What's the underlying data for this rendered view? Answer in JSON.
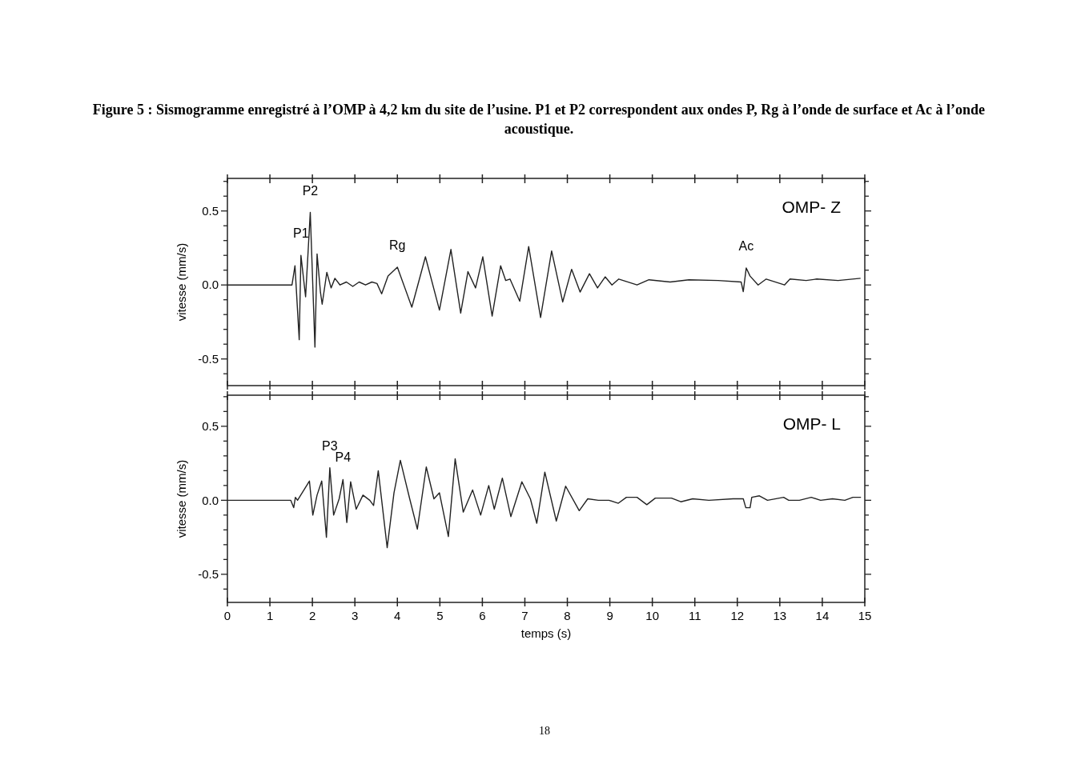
{
  "chart_data": [
    {
      "type": "line",
      "title": "Figure 5 : Sismogramme enregistré à l’OMP à 4,2 km du site de l’usine. P1 et P2 correspondent aux ondes P, Rg à l’onde de surface et Ac à l’onde acoustique.",
      "subtitle": "OMP- Z",
      "ylabel": "vitesse (mm/s)",
      "xlim": [
        0,
        15
      ],
      "xticks": [
        {
          "value": 0,
          "label": null
        },
        {
          "value": 1,
          "label": null
        },
        {
          "value": 2,
          "label": null
        },
        {
          "value": 3,
          "label": null
        },
        {
          "value": 4,
          "label": null
        },
        {
          "value": 5,
          "label": null
        },
        {
          "value": 6,
          "label": null
        },
        {
          "value": 7,
          "label": null
        },
        {
          "value": 8,
          "label": null
        },
        {
          "value": 9,
          "label": null
        },
        {
          "value": 10,
          "label": null
        },
        {
          "value": 11,
          "label": null
        },
        {
          "value": 12,
          "label": null
        },
        {
          "value": 13,
          "label": null
        },
        {
          "value": 14,
          "label": null
        },
        {
          "value": 15,
          "label": null
        }
      ],
      "ylim": [
        -0.68,
        0.72
      ],
      "yticks": [
        {
          "value": -0.6,
          "label": null
        },
        {
          "value": -0.5,
          "label": "-0.5"
        },
        {
          "value": -0.4,
          "label": null
        },
        {
          "value": -0.3,
          "label": null
        },
        {
          "value": -0.2,
          "label": null
        },
        {
          "value": -0.1,
          "label": null
        },
        {
          "value": 0,
          "label": "0.0"
        },
        {
          "value": 0.1,
          "label": null
        },
        {
          "value": 0.2,
          "label": null
        },
        {
          "value": 0.3,
          "label": null
        },
        {
          "value": 0.4,
          "label": null
        },
        {
          "value": 0.5,
          "label": "0.5"
        },
        {
          "value": 0.6,
          "label": null
        },
        {
          "value": 0.7,
          "label": null
        }
      ],
      "tick_labels": "y",
      "grid": false,
      "marker": "none",
      "line_style": "solid",
      "annotations": [
        {
          "text": "P1",
          "x": 1.73,
          "y": 0.2
        },
        {
          "text": "P2",
          "x": 1.95,
          "y": 0.49
        },
        {
          "text": "Rg",
          "x": 4.0,
          "y": 0.12
        },
        {
          "text": "Ac",
          "x": 12.21,
          "y": 0.115
        }
      ],
      "series": [
        {
          "color": "#222222",
          "x": [
            0,
            1.52,
            1.59,
            1.69,
            1.73,
            1.84,
            1.95,
            2.06,
            2.11,
            2.19,
            2.23,
            2.34,
            2.44,
            2.53,
            2.65,
            2.8,
            2.95,
            3.1,
            3.25,
            3.4,
            3.52,
            3.63,
            3.78,
            4.0,
            4.34,
            4.66,
            4.99,
            5.26,
            5.49,
            5.66,
            5.84,
            6.01,
            6.23,
            6.43,
            6.55,
            6.65,
            6.88,
            7.09,
            7.37,
            7.63,
            7.89,
            8.1,
            8.3,
            8.52,
            8.71,
            8.89,
            9.05,
            9.21,
            9.64,
            9.92,
            10.42,
            10.86,
            11.55,
            12.09,
            12.14,
            12.21,
            12.3,
            12.49,
            12.68,
            13.11,
            13.24,
            13.62,
            13.87,
            14.37,
            14.9
          ],
          "values": [
            0,
            0,
            0.13,
            -0.37,
            0.2,
            -0.08,
            0.49,
            -0.42,
            0.21,
            -0.05,
            -0.13,
            0.085,
            -0.02,
            0.045,
            0,
            0.02,
            -0.01,
            0.02,
            0,
            0.02,
            0.01,
            -0.06,
            0.06,
            0.12,
            -0.15,
            0.19,
            -0.17,
            0.24,
            -0.19,
            0.09,
            -0.02,
            0.19,
            -0.21,
            0.13,
            0.03,
            0.04,
            -0.11,
            0.26,
            -0.22,
            0.23,
            -0.115,
            0.106,
            -0.048,
            0.076,
            -0.02,
            0.055,
            0,
            0.04,
            0,
            0.035,
            0.02,
            0.035,
            0.03,
            0.02,
            -0.045,
            0.115,
            0.06,
            0,
            0.04,
            0,
            0.04,
            0.03,
            0.04,
            0.03,
            0.045
          ]
        }
      ]
    },
    {
      "type": "line",
      "subtitle": "OMP- L",
      "xlabel": "temps (s)",
      "ylabel": "vitesse (mm/s)",
      "xlim": [
        0,
        15
      ],
      "xticks": [
        0,
        1,
        2,
        3,
        4,
        5,
        6,
        7,
        8,
        9,
        10,
        11,
        12,
        13,
        14,
        15
      ],
      "ylim": [
        -0.69,
        0.71
      ],
      "yticks": [
        {
          "value": -0.6,
          "label": null
        },
        {
          "value": -0.5,
          "label": "-0.5"
        },
        {
          "value": -0.4,
          "label": null
        },
        {
          "value": -0.3,
          "label": null
        },
        {
          "value": -0.2,
          "label": null
        },
        {
          "value": -0.1,
          "label": null
        },
        {
          "value": 0,
          "label": "0.0"
        },
        {
          "value": 0.1,
          "label": null
        },
        {
          "value": 0.2,
          "label": null
        },
        {
          "value": 0.3,
          "label": null
        },
        {
          "value": 0.4,
          "label": null
        },
        {
          "value": 0.5,
          "label": "0.5"
        },
        {
          "value": 0.6,
          "label": null
        },
        {
          "value": 0.7,
          "label": null
        }
      ],
      "grid": false,
      "marker": "none",
      "line_style": "solid",
      "annotations": [
        {
          "text": "P3",
          "x": 2.41,
          "y": 0.22
        },
        {
          "text": "P4",
          "x": 2.72,
          "y": 0.14
        },
        "18"
      ],
      "series": [
        {
          "color": "#222222",
          "x": [
            0,
            1.49,
            1.56,
            1.6,
            1.65,
            1.93,
            2.01,
            2.11,
            2.22,
            2.33,
            2.41,
            2.5,
            2.63,
            2.72,
            2.81,
            2.9,
            3.03,
            3.19,
            3.35,
            3.44,
            3.55,
            3.76,
            3.92,
            4.07,
            4.29,
            4.47,
            4.68,
            4.86,
            4.99,
            5.2,
            5.36,
            5.55,
            5.77,
            5.96,
            6.15,
            6.28,
            6.47,
            6.67,
            6.93,
            7.13,
            7.28,
            7.47,
            7.74,
            7.96,
            8.28,
            8.48,
            8.73,
            8.98,
            9.2,
            9.39,
            9.64,
            9.87,
            10.07,
            10.45,
            10.67,
            10.95,
            11.33,
            11.9,
            12.14,
            12.2,
            12.3,
            12.34,
            12.52,
            12.71,
            13.09,
            13.21,
            13.46,
            13.74,
            13.96,
            14.24,
            14.53,
            14.72,
            14.91
          ],
          "values": [
            0,
            0,
            -0.05,
            0.02,
            0,
            0.13,
            -0.1,
            0.035,
            0.13,
            -0.25,
            0.22,
            -0.1,
            0.01,
            0.14,
            -0.15,
            0.125,
            -0.06,
            0.035,
            0,
            -0.035,
            0.2,
            -0.32,
            0.05,
            0.27,
            0.01,
            -0.195,
            0.225,
            0.01,
            0.05,
            -0.245,
            0.28,
            -0.08,
            0.07,
            -0.1,
            0.1,
            -0.06,
            0.15,
            -0.11,
            0.125,
            0.01,
            -0.155,
            0.19,
            -0.14,
            0.095,
            -0.07,
            0.01,
            0,
            0,
            -0.02,
            0.02,
            0.02,
            -0.03,
            0.015,
            0.015,
            -0.01,
            0.01,
            0,
            0.01,
            0.01,
            -0.05,
            -0.05,
            0.02,
            0.03,
            0,
            0.02,
            0,
            0,
            0.02,
            0,
            0.01,
            0,
            0.02,
            0.02
          ]
        }
      ]
    }
  ]
}
